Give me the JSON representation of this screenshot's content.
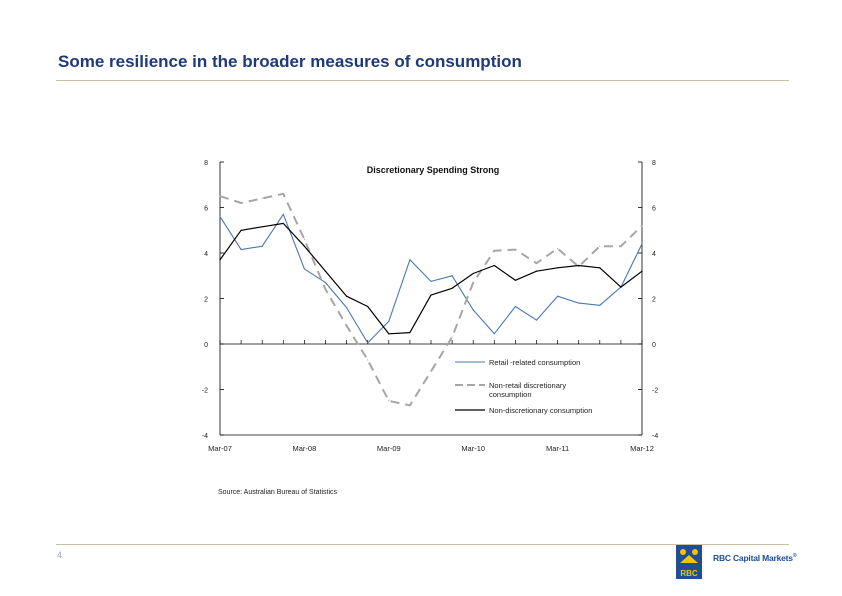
{
  "slide": {
    "title": "Some resilience in the broader measures of consumption",
    "page_number": "4",
    "source": "Source: Australian Bureau of Statistics",
    "brand": "RBC Capital Markets",
    "brand_mark": "®",
    "logo_text": "RBC"
  },
  "colors": {
    "title": "#1f3a7a",
    "rule": "#c8c1a8",
    "retail": "#4a78b5",
    "non_retail": "#a6a6a6",
    "non_discretionary": "#000000"
  },
  "chart_data": {
    "type": "line",
    "title": "Discretionary Spending Strong",
    "xlabel": "",
    "ylabel": "",
    "ylim": [
      -4,
      8
    ],
    "y_ticks": [
      "8",
      "6",
      "4",
      "2",
      "0",
      "-2",
      "-4"
    ],
    "y_tick_values": [
      8,
      6,
      4,
      2,
      0,
      -2,
      -4
    ],
    "x_tick_labels": [
      "Mar-07",
      "Mar-08",
      "Mar-09",
      "Mar-10",
      "Mar-11",
      "Mar-12"
    ],
    "x_tick_positions": [
      0,
      4,
      8,
      12,
      16,
      20
    ],
    "x_count": 21,
    "legend_position": "bottom-right",
    "series": [
      {
        "name": "Retail -related consumption",
        "style": "solid",
        "values": [
          5.6,
          4.15,
          4.3,
          5.7,
          3.3,
          2.7,
          1.6,
          0.05,
          1.0,
          3.7,
          2.75,
          3.0,
          1.5,
          0.45,
          1.65,
          1.05,
          2.1,
          1.8,
          1.7,
          2.5,
          4.4
        ]
      },
      {
        "name": "Non-retail discretionary consumption",
        "style": "dashed",
        "values": [
          6.5,
          6.2,
          6.4,
          6.6,
          4.6,
          2.4,
          0.8,
          -0.7,
          -2.5,
          -2.7,
          -1.2,
          0.3,
          2.7,
          4.1,
          4.15,
          3.55,
          4.2,
          3.4,
          4.3,
          4.3,
          5.2
        ]
      },
      {
        "name": "Non-discretionary consumption",
        "style": "solid",
        "values": [
          3.7,
          5.0,
          5.15,
          5.3,
          4.3,
          3.2,
          2.1,
          1.65,
          0.45,
          0.5,
          2.15,
          2.45,
          3.1,
          3.45,
          2.8,
          3.2,
          3.35,
          3.45,
          3.35,
          2.5,
          3.2
        ]
      }
    ],
    "legend_lines": [
      [
        "Retail -related consumption"
      ],
      [
        "Non-retail discretionary",
        "consumption"
      ],
      [
        "Non-discretionary consumption"
      ]
    ]
  }
}
